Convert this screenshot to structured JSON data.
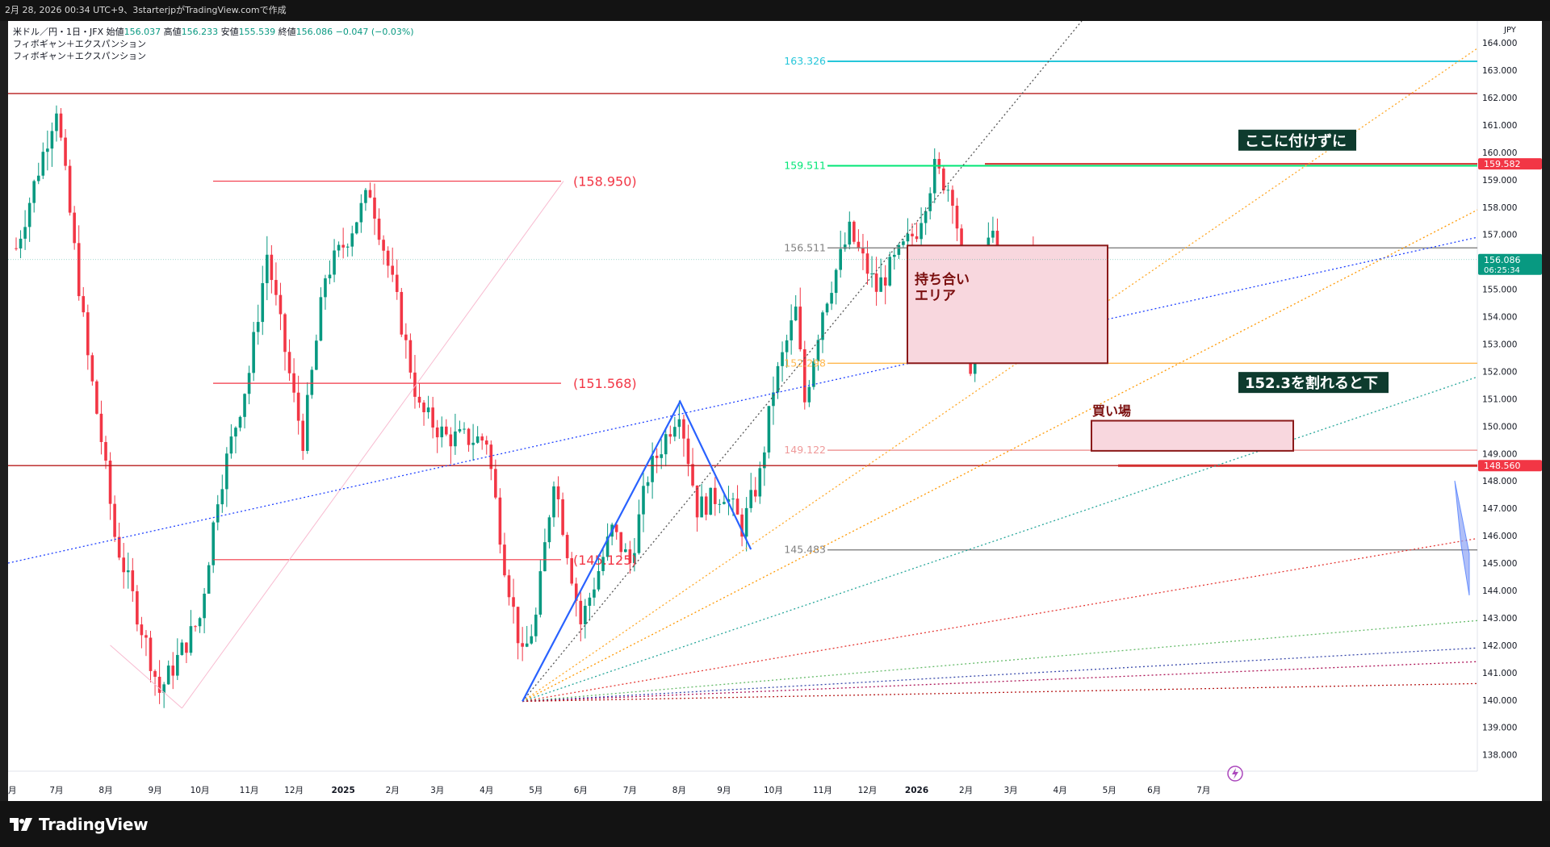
{
  "header": {
    "caption": "2月 28, 2026 00:34 UTC+9、3starterjpがTradingView.comで作成"
  },
  "legend": {
    "symbol": "米ドル／円・1日・JFX",
    "open_label": "始値",
    "open": "156.037",
    "high_label": "高値",
    "high": "156.233",
    "low_label": "安値",
    "low": "155.539",
    "close_label": "終値",
    "close": "156.086",
    "change": "−0.047 (−0.03%)",
    "indicator1": "フィボギャン＋エクスパンション",
    "indicator2": "フィボギャン＋エクスパンション"
  },
  "footer": {
    "brand": "TradingView"
  },
  "chart_data": {
    "type": "candlestick",
    "currency": "JPY",
    "ylim": [
      137.4,
      164.8
    ],
    "y_ticks": [
      138,
      139,
      140,
      141,
      142,
      143,
      144,
      145,
      146,
      147,
      148,
      149,
      150,
      151,
      152,
      153,
      154,
      155,
      156,
      157,
      158,
      159,
      160,
      161,
      162,
      163,
      164
    ],
    "x_ticks": [
      {
        "label": "7月",
        "i": 9
      },
      {
        "label": "8月",
        "i": 20
      },
      {
        "label": "9月",
        "i": 31
      },
      {
        "label": "10月",
        "i": 41
      },
      {
        "label": "11月",
        "i": 52
      },
      {
        "label": "12月",
        "i": 62
      },
      {
        "label": "2025",
        "i": 73
      },
      {
        "label": "2月",
        "i": 84
      },
      {
        "label": "3月",
        "i": 94
      },
      {
        "label": "4月",
        "i": 105
      },
      {
        "label": "5月",
        "i": 116
      },
      {
        "label": "6月",
        "i": 126
      },
      {
        "label": "7月",
        "i": 137
      },
      {
        "label": "8月",
        "i": 148
      },
      {
        "label": "9月",
        "i": 158
      },
      {
        "label": "10月",
        "i": 169
      },
      {
        "label": "11月",
        "i": 180
      },
      {
        "label": "12月",
        "i": 190
      },
      {
        "label": "2026",
        "i": 201
      },
      {
        "label": "2月",
        "i": 212
      },
      {
        "label": "3月",
        "i": 222
      },
      {
        "label": "4月",
        "i": 233
      },
      {
        "label": "5月",
        "i": 244
      },
      {
        "label": "6月",
        "i": 254
      },
      {
        "label": "7月",
        "i": 265
      }
    ],
    "first_tick_partial": "月",
    "series_weekly_close_approx": [
      {
        "date": "2024-06-01",
        "close": 156.5
      },
      {
        "date": "2024-07-03",
        "close": 161.7
      },
      {
        "date": "2024-07-31",
        "close": 150.0
      },
      {
        "date": "2024-09-16",
        "close": 140.3
      },
      {
        "date": "2024-10-31",
        "close": 152.0
      },
      {
        "date": "2024-11-15",
        "close": 156.3
      },
      {
        "date": "2024-12-03",
        "close": 149.5
      },
      {
        "date": "2025-01-10",
        "close": 158.6
      },
      {
        "date": "2025-02-28",
        "close": 150.6
      },
      {
        "date": "2025-03-27",
        "close": 151.0
      },
      {
        "date": "2025-04-22",
        "close": 140.8
      },
      {
        "date": "2025-05-12",
        "close": 148.2
      },
      {
        "date": "2025-06-03",
        "close": 142.8
      },
      {
        "date": "2025-07-31",
        "close": 150.7
      },
      {
        "date": "2025-09-17",
        "close": 146.3
      },
      {
        "date": "2025-10-10",
        "close": 151.4
      },
      {
        "date": "2025-11-18",
        "close": 157.1
      },
      {
        "date": "2026-01-14",
        "close": 159.4
      },
      {
        "date": "2026-01-28",
        "close": 152.5
      },
      {
        "date": "2026-02-27",
        "close": 156.086
      }
    ],
    "horizontal_levels": [
      {
        "value": 163.326,
        "label": "163.326",
        "color": "#26c6da"
      },
      {
        "value": 162.15,
        "color": "#b71c1c"
      },
      {
        "value": 159.511,
        "label": "159.511",
        "color": "#00e676"
      },
      {
        "value": 159.582,
        "label": "159.582",
        "color": "#d32f2f"
      },
      {
        "value": 156.511,
        "label": "156.511",
        "color": "#808080"
      },
      {
        "value": 152.298,
        "label": "152.298",
        "color": "#ffb74d"
      },
      {
        "value": 149.122,
        "label": "149.122",
        "color": "#ef9a9a"
      },
      {
        "value": 148.56,
        "label": "148.560",
        "color": "#b71c1c"
      },
      {
        "value": 145.483,
        "label": "145.483",
        "color": "#808080"
      }
    ],
    "fib_expansion_levels": [
      {
        "value": 158.95,
        "label": "(158.950)"
      },
      {
        "value": 151.568,
        "label": "(151.568)"
      },
      {
        "value": 145.125,
        "label": "(145.125)"
      }
    ],
    "price_tags": [
      {
        "value": 159.582,
        "label": "159.582",
        "color": "#f23645"
      },
      {
        "value": 156.086,
        "label": "156.086",
        "sub": "06:25:34",
        "color": "#089981"
      },
      {
        "value": 148.56,
        "label": "148.560",
        "color": "#f23645"
      }
    ],
    "annotations": {
      "box1": "持ち合い\nエリア",
      "box2": "買い場",
      "note_top": "ここに付けずに",
      "note_bottom": "152.3を割れると下"
    }
  }
}
